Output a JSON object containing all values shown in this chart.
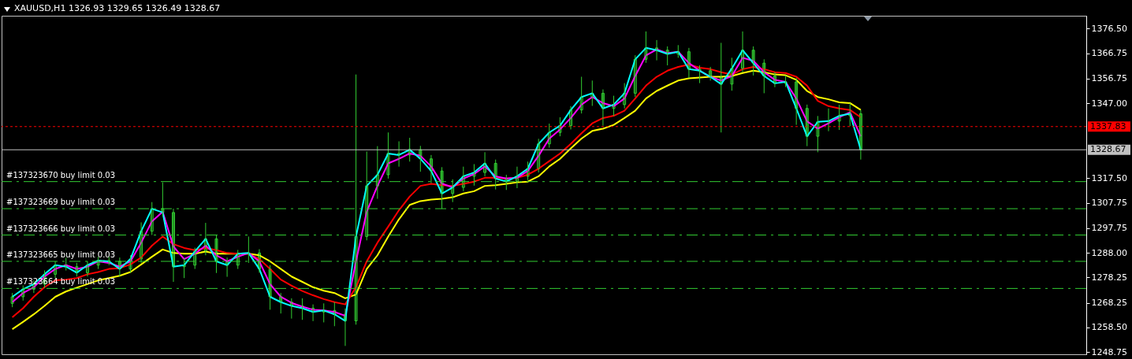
{
  "chart_data": {
    "type": "candlestick",
    "title": "XAUUSD,H1 1326.93 1329.65 1326.49 1328.67",
    "color": "#32cd32",
    "categories": [
      null,
      null,
      null,
      null,
      null,
      null,
      null,
      null,
      null,
      null,
      null,
      null,
      null,
      null,
      null,
      null,
      null,
      null,
      null,
      null,
      null,
      null,
      null,
      null,
      null,
      null,
      null,
      null,
      null,
      null,
      null,
      null,
      null,
      null,
      null,
      null,
      null,
      null,
      null,
      null,
      null,
      null,
      null,
      null,
      null,
      null,
      null,
      null,
      null,
      null,
      null,
      null,
      null,
      null,
      null,
      null,
      null,
      null,
      null,
      null,
      null,
      null,
      null,
      null,
      null,
      null,
      null,
      null,
      null,
      null,
      null,
      null,
      null,
      null,
      null,
      null,
      null,
      null,
      null,
      null,
      null,
      null,
      null,
      null,
      null,
      null,
      null,
      null,
      null,
      null,
      null,
      null,
      null,
      null,
      null,
      null,
      null,
      null,
      null,
      null
    ],
    "ohlc": [
      [
        1268.0,
        1272.1,
        1266.5,
        1270.6
      ],
      [
        1270.6,
        1275.1,
        1269.1,
        1273.6
      ],
      [
        1273.6,
        1277.1,
        1272.1,
        1275.6
      ],
      [
        1275.6,
        1281.0,
        1274.1,
        1279.5
      ],
      [
        1279.5,
        1284.6,
        1278.0,
        1283.1
      ],
      [
        1283.1,
        1286.0,
        1281.0,
        1282.5
      ],
      [
        1282.5,
        1284.0,
        1278.6,
        1280.1
      ],
      [
        1280.1,
        1284.6,
        1278.6,
        1283.1
      ],
      [
        1283.1,
        1286.4,
        1281.6,
        1284.9
      ],
      [
        1284.9,
        1286.4,
        1283.1,
        1284.6
      ],
      [
        1284.6,
        1286.1,
        1278.6,
        1281.6
      ],
      [
        1281.6,
        1287.0,
        1280.1,
        1285.5
      ],
      [
        1285.5,
        1300.0,
        1284.0,
        1296.5
      ],
      [
        1296.5,
        1308.0,
        1295.0,
        1305.4
      ],
      [
        1305.4,
        1315.8,
        1302.4,
        1303.9
      ],
      [
        1303.9,
        1305.4,
        1276.5,
        1282.5
      ],
      [
        1282.5,
        1286.0,
        1278.0,
        1283.1
      ],
      [
        1283.1,
        1290.0,
        1281.6,
        1288.5
      ],
      [
        1288.5,
        1299.8,
        1287.0,
        1293.5
      ],
      [
        1293.5,
        1295.0,
        1280.0,
        1284.6
      ],
      [
        1284.6,
        1286.1,
        1278.5,
        1283.1
      ],
      [
        1283.1,
        1289.1,
        1281.6,
        1287.6
      ],
      [
        1287.6,
        1294.4,
        1284.0,
        1287.9
      ],
      [
        1287.9,
        1289.4,
        1280.1,
        1281.6
      ],
      [
        1281.6,
        1283.1,
        1265.5,
        1270.6
      ],
      [
        1270.6,
        1272.1,
        1264.0,
        1268.5
      ],
      [
        1268.5,
        1270.0,
        1262.0,
        1267.0
      ],
      [
        1267.0,
        1270.0,
        1261.5,
        1266.1
      ],
      [
        1266.1,
        1267.6,
        1261.0,
        1264.6
      ],
      [
        1264.6,
        1268.0,
        1260.5,
        1265.2
      ],
      [
        1265.2,
        1268.5,
        1259.0,
        1263.7
      ],
      [
        1263.7,
        1266.0,
        1251.2,
        1261.1
      ],
      [
        1261.1,
        1358.4,
        1259.6,
        1294.4
      ],
      [
        1294.4,
        1328.0,
        1292.9,
        1314.4
      ],
      [
        1314.4,
        1330.1,
        1309.3,
        1318.8
      ],
      [
        1318.8,
        1335.5,
        1317.3,
        1327.2
      ],
      [
        1327.2,
        1332.0,
        1322.0,
        1326.6
      ],
      [
        1326.6,
        1333.4,
        1324.0,
        1328.7
      ],
      [
        1328.7,
        1330.2,
        1320.0,
        1325.1
      ],
      [
        1325.1,
        1326.6,
        1315.5,
        1320.3
      ],
      [
        1320.3,
        1321.8,
        1305.4,
        1311.4
      ],
      [
        1311.4,
        1317.0,
        1308.0,
        1313.8
      ],
      [
        1313.8,
        1322.0,
        1312.3,
        1318.2
      ],
      [
        1318.2,
        1323.0,
        1314.5,
        1319.7
      ],
      [
        1319.7,
        1327.7,
        1318.2,
        1323.3
      ],
      [
        1323.3,
        1324.8,
        1313.0,
        1317.3
      ],
      [
        1317.3,
        1318.8,
        1312.8,
        1316.1
      ],
      [
        1316.1,
        1322.0,
        1313.5,
        1318.2
      ],
      [
        1318.2,
        1324.0,
        1316.7,
        1321.2
      ],
      [
        1321.2,
        1333.0,
        1319.7,
        1331.0
      ],
      [
        1331.0,
        1339.0,
        1329.5,
        1335.5
      ],
      [
        1335.5,
        1341.5,
        1334.0,
        1338.2
      ],
      [
        1338.2,
        1345.9,
        1336.7,
        1344.4
      ],
      [
        1344.4,
        1357.5,
        1343.0,
        1349.5
      ],
      [
        1349.5,
        1356.0,
        1346.0,
        1351.0
      ],
      [
        1351.0,
        1352.5,
        1338.2,
        1345.0
      ],
      [
        1345.0,
        1350.0,
        1342.0,
        1346.5
      ],
      [
        1346.5,
        1355.0,
        1345.0,
        1351.0
      ],
      [
        1351.0,
        1366.0,
        1349.5,
        1364.4
      ],
      [
        1364.4,
        1375.4,
        1363.0,
        1368.9
      ],
      [
        1368.9,
        1372.0,
        1364.0,
        1368.0
      ],
      [
        1368.0,
        1369.5,
        1362.0,
        1366.5
      ],
      [
        1366.5,
        1370.0,
        1365.0,
        1367.4
      ],
      [
        1367.4,
        1368.9,
        1357.0,
        1360.5
      ],
      [
        1360.5,
        1362.0,
        1355.0,
        1359.9
      ],
      [
        1359.9,
        1361.4,
        1356.0,
        1357.5
      ],
      [
        1357.5,
        1370.9,
        1335.5,
        1354.6
      ],
      [
        1354.6,
        1365.0,
        1352.0,
        1360.8
      ],
      [
        1360.8,
        1375.4,
        1359.3,
        1368.0
      ],
      [
        1368.0,
        1369.5,
        1358.0,
        1362.9
      ],
      [
        1362.9,
        1364.4,
        1351.0,
        1357.8
      ],
      [
        1357.8,
        1359.3,
        1353.4,
        1354.9
      ],
      [
        1354.9,
        1358.0,
        1353.4,
        1355.5
      ],
      [
        1355.5,
        1357.0,
        1338.5,
        1345.0
      ],
      [
        1345.0,
        1346.5,
        1330.1,
        1334.0
      ],
      [
        1334.0,
        1342.0,
        1327.7,
        1339.7
      ],
      [
        1339.7,
        1345.0,
        1336.0,
        1340.0
      ],
      [
        1340.0,
        1346.5,
        1336.5,
        1342.1
      ],
      [
        1342.1,
        1347.1,
        1338.0,
        1342.9
      ],
      [
        1342.9,
        1344.4,
        1324.8,
        1328.67
      ],
      null,
      null,
      null,
      null,
      null,
      null,
      null,
      null,
      null,
      null,
      null,
      null,
      null,
      null,
      null,
      null,
      null,
      null,
      null,
      null
    ],
    "series": [
      {
        "type": "line",
        "color": "#ffff00",
        "values": [
          1257.8,
          1260.7,
          1263.7,
          1267.0,
          1270.6,
          1272.7,
          1274.2,
          1275.6,
          1277.1,
          1278.0,
          1278.9,
          1280.4,
          1283.4,
          1286.4,
          1289.3,
          1287.9,
          1287.6,
          1287.6,
          1288.5,
          1287.6,
          1287.6,
          1287.6,
          1287.6,
          1287.0,
          1284.6,
          1281.6,
          1278.6,
          1276.5,
          1274.4,
          1273.0,
          1272.1,
          1270.0,
          1271.5,
          1281.6,
          1287.0,
          1294.4,
          1301.2,
          1306.9,
          1308.4,
          1309.0,
          1309.3,
          1309.9,
          1311.4,
          1312.3,
          1314.4,
          1314.7,
          1315.2,
          1315.8,
          1316.1,
          1318.2,
          1322.1,
          1325.1,
          1329.2,
          1333.1,
          1336.1,
          1337.0,
          1338.5,
          1341.2,
          1344.1,
          1348.9,
          1351.9,
          1354.0,
          1356.0,
          1356.9,
          1357.2,
          1357.5,
          1357.5,
          1357.8,
          1359.0,
          1359.9,
          1359.3,
          1358.4,
          1358.1,
          1356.3,
          1351.9,
          1349.5,
          1348.6,
          1347.4,
          1347.1,
          1344.4,
          null,
          null,
          null,
          null,
          null,
          null,
          null,
          null,
          null,
          null,
          null,
          null,
          null,
          null,
          null,
          null,
          null,
          null,
          null,
          null
        ]
      },
      {
        "type": "line",
        "color": "#ff0000",
        "values": [
          1262.5,
          1266.1,
          1270.6,
          1274.4,
          1277.1,
          1277.4,
          1278.0,
          1279.5,
          1280.4,
          1281.6,
          1281.9,
          1283.4,
          1286.1,
          1290.8,
          1294.4,
          1291.4,
          1289.9,
          1289.0,
          1289.9,
          1289.0,
          1287.9,
          1287.6,
          1287.6,
          1285.5,
          1281.6,
          1277.4,
          1275.0,
          1272.9,
          1271.2,
          1269.7,
          1268.5,
          1267.6,
          1274.4,
          1284.6,
          1292.0,
          1298.3,
          1304.8,
          1310.2,
          1314.4,
          1315.2,
          1314.7,
          1314.4,
          1315.2,
          1316.1,
          1317.6,
          1317.6,
          1317.3,
          1317.6,
          1318.8,
          1321.2,
          1324.2,
          1327.2,
          1331.0,
          1335.2,
          1339.1,
          1341.2,
          1342.1,
          1344.1,
          1348.9,
          1354.0,
          1357.5,
          1359.9,
          1361.4,
          1362.3,
          1361.1,
          1360.5,
          1359.3,
          1358.4,
          1360.5,
          1361.4,
          1360.5,
          1359.3,
          1359.0,
          1357.5,
          1354.0,
          1348.0,
          1345.9,
          1345.0,
          1344.4,
          1341.5,
          null,
          null,
          null,
          null,
          null,
          null,
          null,
          null,
          null,
          null,
          null,
          null,
          null,
          null,
          null,
          null,
          null,
          null,
          null,
          null
        ]
      },
      {
        "type": "line",
        "color": "#ff00ff",
        "values": [
          1268.5,
          1272.1,
          1274.4,
          1278.6,
          1281.6,
          1283.1,
          1281.6,
          1282.5,
          1284.6,
          1284.0,
          1282.5,
          1284.6,
          1292.0,
          1300.4,
          1304.2,
          1290.5,
          1285.5,
          1287.6,
          1290.8,
          1287.0,
          1284.6,
          1286.4,
          1287.9,
          1284.6,
          1275.6,
          1270.6,
          1268.2,
          1266.7,
          1265.5,
          1265.2,
          1264.6,
          1263.1,
          1284.6,
          1304.2,
          1314.4,
          1323.3,
          1325.1,
          1327.2,
          1326.3,
          1322.1,
          1315.3,
          1313.8,
          1317.3,
          1319.1,
          1322.1,
          1318.2,
          1317.3,
          1317.6,
          1320.3,
          1326.3,
          1333.1,
          1336.7,
          1341.2,
          1346.5,
          1349.5,
          1347.1,
          1345.9,
          1348.9,
          1357.8,
          1365.9,
          1368.3,
          1366.8,
          1367.4,
          1362.9,
          1359.9,
          1357.5,
          1356.0,
          1357.8,
          1365.0,
          1363.8,
          1359.3,
          1356.3,
          1355.5,
          1348.9,
          1339.9,
          1337.0,
          1339.1,
          1341.5,
          1343.5,
          1334.0,
          null,
          null,
          null,
          null,
          null,
          null,
          null,
          null,
          null,
          null,
          null,
          null,
          null,
          null,
          null,
          null,
          null,
          null,
          null,
          null
        ]
      },
      {
        "type": "line",
        "color": "#00ffff",
        "values": [
          1270.6,
          1273.6,
          1275.6,
          1279.5,
          1283.1,
          1282.5,
          1280.1,
          1283.1,
          1284.9,
          1284.6,
          1281.6,
          1285.5,
          1296.5,
          1305.4,
          1303.9,
          1282.5,
          1283.1,
          1288.5,
          1293.5,
          1284.6,
          1283.1,
          1287.6,
          1287.9,
          1281.6,
          1270.6,
          1268.5,
          1267.0,
          1266.1,
          1264.6,
          1265.2,
          1263.7,
          1261.1,
          1294.4,
          1314.4,
          1318.8,
          1327.2,
          1326.6,
          1328.7,
          1325.1,
          1320.3,
          1311.4,
          1313.8,
          1318.2,
          1319.7,
          1323.3,
          1317.3,
          1316.1,
          1318.2,
          1321.2,
          1331.0,
          1335.5,
          1338.2,
          1344.4,
          1349.5,
          1351.0,
          1345.0,
          1346.5,
          1351.0,
          1364.4,
          1368.9,
          1368.0,
          1366.5,
          1367.4,
          1360.5,
          1359.9,
          1357.5,
          1354.6,
          1360.8,
          1368.0,
          1362.9,
          1357.8,
          1354.9,
          1355.5,
          1345.0,
          1334.0,
          1339.7,
          1340.0,
          1342.1,
          1342.9,
          1328.67,
          null,
          null,
          null,
          null,
          null,
          null,
          null,
          null,
          null,
          null,
          null,
          null,
          null,
          null,
          null,
          null,
          null,
          null,
          null,
          null
        ]
      }
    ],
    "ylim": [
      1247.9,
      1381.6
    ],
    "yticks": [
      {
        "value": 1376.5,
        "label": "1376.50"
      },
      {
        "value": 1366.75,
        "label": "1366.75"
      },
      {
        "value": 1356.75,
        "label": "1356.75"
      },
      {
        "value": 1347,
        "label": "1347.00"
      },
      {
        "value": 1317.5,
        "label": "1317.50"
      },
      {
        "value": 1307.75,
        "label": "1307.75"
      },
      {
        "value": 1297.75,
        "label": "1297.75"
      },
      {
        "value": 1288,
        "label": "1288.00"
      },
      {
        "value": 1278.25,
        "label": "1278.25"
      },
      {
        "value": 1268.25,
        "label": "1268.25"
      },
      {
        "value": 1258.5,
        "label": "1258.50"
      },
      {
        "value": 1248.75,
        "label": "1248.75"
      }
    ],
    "tick_labels": "y",
    "ref_lines": [
      {
        "axis": "y",
        "value": 1337.83,
        "label": "1337.83",
        "color": "#ff0000",
        "line_style": "dotted"
      },
      {
        "axis": "y",
        "value": 1328.67,
        "label": "1328.67",
        "color": "#c0c0c0",
        "line_style": "solid"
      },
      {
        "axis": "y",
        "value": 1316.1,
        "label": "#137323670 buy limit 0.03",
        "color": "#32cd32",
        "line_style": "dashed"
      },
      {
        "axis": "y",
        "value": 1305.4,
        "label": "#137323669 buy limit 0.03",
        "color": "#32cd32",
        "line_style": "dashed"
      },
      {
        "axis": "y",
        "value": 1295.0,
        "label": "#137323666 buy limit 0.03",
        "color": "#32cd32",
        "line_style": "dashed"
      },
      {
        "axis": "y",
        "value": 1284.6,
        "label": "#137323665 buy limit 0.03",
        "color": "#32cd32",
        "line_style": "dashed"
      },
      {
        "axis": "y",
        "value": 1273.9,
        "label": "#137323664 buy limit 0.03",
        "color": "#32cd32",
        "line_style": "dashed"
      }
    ]
  }
}
